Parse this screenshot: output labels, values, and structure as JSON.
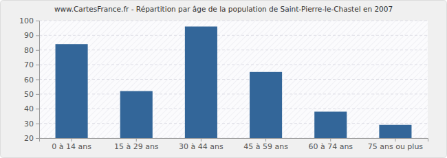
{
  "chart_data": {
    "type": "bar",
    "title": "www.CartesFrance.fr - Répartition par âge de la population de Saint-Pierre-le-Chastel en 2007",
    "categories": [
      "0 à 14 ans",
      "15 à 29 ans",
      "30 à 44 ans",
      "45 à 59 ans",
      "60 à 74 ans",
      "75 ans ou plus"
    ],
    "values": [
      84,
      52,
      96,
      65,
      38,
      29
    ],
    "color": "#336699",
    "ylim": [
      20,
      100
    ],
    "yticks": [
      20,
      30,
      40,
      50,
      60,
      70,
      80,
      90,
      100
    ],
    "grid": true
  }
}
